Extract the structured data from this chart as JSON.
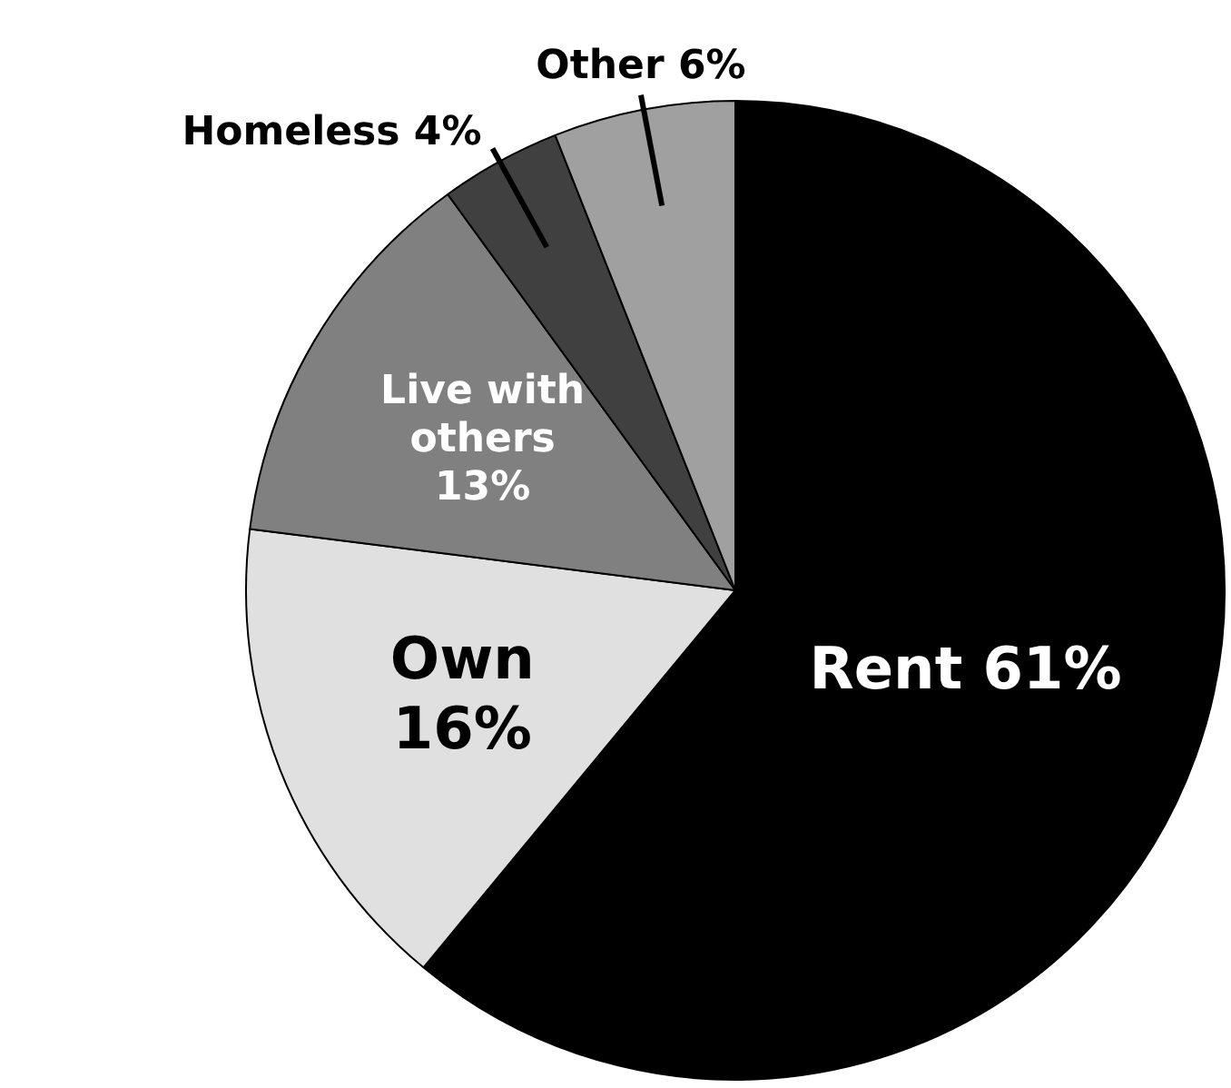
{
  "chart_data": {
    "type": "pie",
    "categories": [
      "Rent",
      "Own",
      "Live with others",
      "Homeless",
      "Other"
    ],
    "values": [
      61,
      16,
      13,
      4,
      6
    ],
    "value_labels": [
      "61%",
      "16%",
      "13%",
      "4%",
      "6%"
    ],
    "colors": [
      "#000000",
      "#e0e0e0",
      "#808080",
      "#404040",
      "#a0a0a0"
    ],
    "legend": false
  }
}
